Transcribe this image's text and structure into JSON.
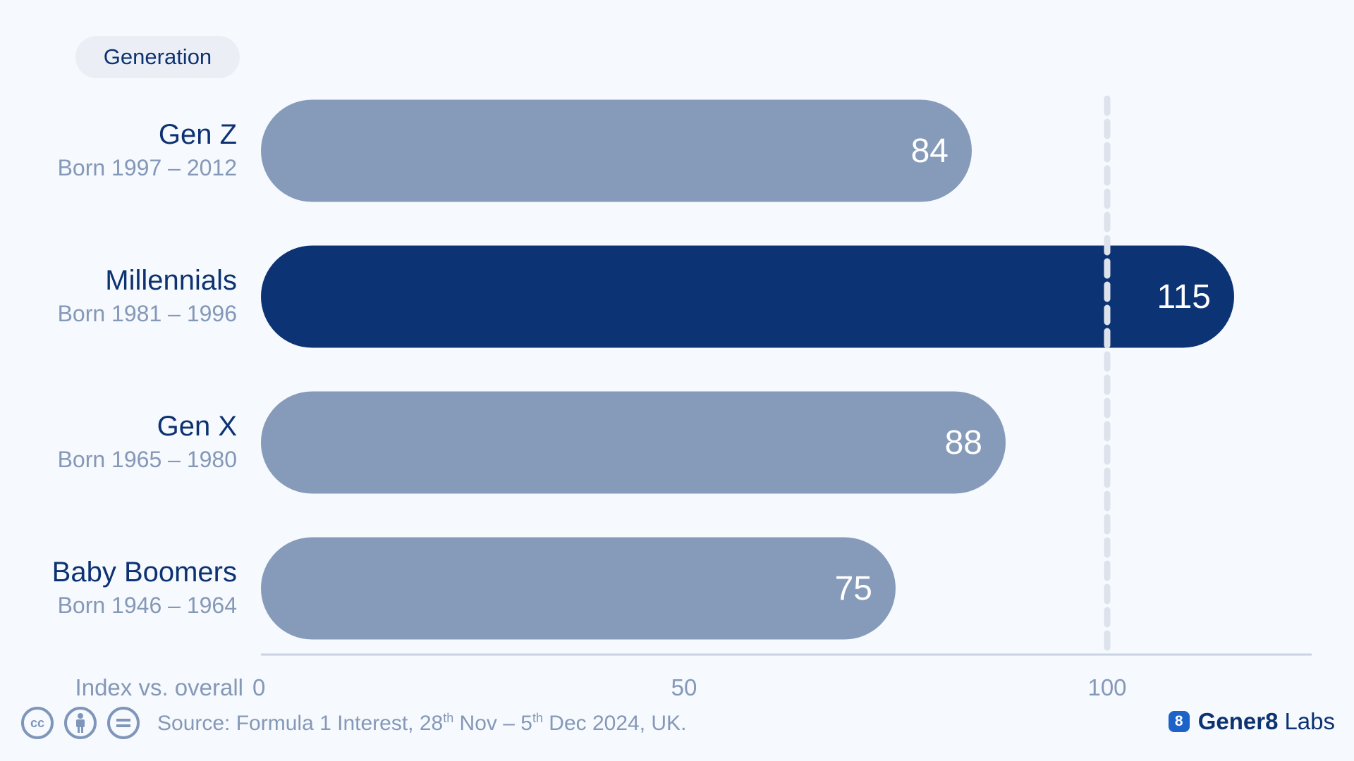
{
  "legend_pill": "Generation",
  "chart_data": {
    "type": "bar",
    "orientation": "horizontal",
    "categories": [
      "Gen Z",
      "Millennials",
      "Gen X",
      "Baby Boomers"
    ],
    "subtitles": [
      "Born 1997 – 2012",
      "Born 1981 – 1996",
      "Born 1965 – 1980",
      "Born 1946 – 1964"
    ],
    "values": [
      84,
      115,
      88,
      75
    ],
    "value_labels": [
      "84",
      "115",
      "88",
      "75"
    ],
    "highlight_index": 1,
    "xlabel": "Index vs. overall",
    "xticks": [
      0,
      50,
      100
    ],
    "xtick_labels": [
      "0",
      "50",
      "100"
    ],
    "xlim": [
      0,
      124
    ],
    "reference_line": 100,
    "colors": {
      "bar": "#869bba",
      "highlight": "#0c3373",
      "category_text": "#0d3272",
      "subtitle_text": "#8498b8",
      "axis": "#c9d3e1",
      "reference": "#dde3ec"
    }
  },
  "footer": {
    "source_prefix": "Source: Formula 1 Interest, 28",
    "sup1": "th",
    "source_mid": " Nov – 5",
    "sup2": "th",
    "source_suffix": " Dec 2024, UK.",
    "license_icons": [
      "cc-icon",
      "attribution-icon",
      "no-derivatives-icon"
    ]
  },
  "brand": {
    "logo_glyph": "8",
    "name_bold": "Gener8",
    "name_regular": "Labs"
  }
}
